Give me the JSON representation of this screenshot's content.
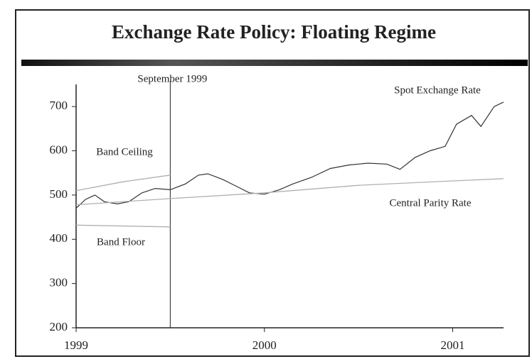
{
  "chart_data": {
    "type": "line",
    "title": "Exchange Rate Policy: Floating Regime",
    "xlim": [
      1999,
      2001.27
    ],
    "xticks": [
      1999,
      2000,
      2001
    ],
    "ylim": [
      200,
      750
    ],
    "yticks": [
      200,
      300,
      400,
      500,
      600,
      700
    ],
    "annotations": [
      {
        "text": "September 1999",
        "x": 1999.5
      }
    ],
    "series": [
      {
        "name": "Spot Exchange Rate",
        "color": "#333333",
        "x": [
          1999.0,
          1999.05,
          1999.1,
          1999.15,
          1999.22,
          1999.28,
          1999.35,
          1999.42,
          1999.5,
          1999.58,
          1999.65,
          1999.7,
          1999.78,
          1999.85,
          1999.92,
          2000.0,
          2000.08,
          2000.15,
          2000.25,
          2000.35,
          2000.45,
          2000.55,
          2000.65,
          2000.72,
          2000.8,
          2000.88,
          2000.96,
          2001.02,
          2001.1,
          2001.15,
          2001.22,
          2001.27
        ],
        "values": [
          470,
          490,
          500,
          485,
          480,
          485,
          505,
          515,
          512,
          525,
          545,
          548,
          535,
          520,
          505,
          502,
          512,
          525,
          540,
          560,
          568,
          572,
          570,
          558,
          585,
          600,
          610,
          660,
          680,
          655,
          700,
          710
        ]
      },
      {
        "name": "Central Parity Rate",
        "color": "#b0b0b0",
        "x": [
          1999.0,
          1999.5,
          2000.0,
          2000.5,
          2001.0,
          2001.27
        ],
        "values": [
          478,
          492,
          505,
          522,
          532,
          537
        ]
      },
      {
        "name": "Band Ceiling",
        "color": "#b0b0b0",
        "x": [
          1999.0,
          1999.25,
          1999.5
        ],
        "values": [
          510,
          530,
          545
        ]
      },
      {
        "name": "Band Floor",
        "color": "#b0b0b0",
        "x": [
          1999.0,
          1999.5
        ],
        "values": [
          432,
          428
        ]
      }
    ]
  }
}
